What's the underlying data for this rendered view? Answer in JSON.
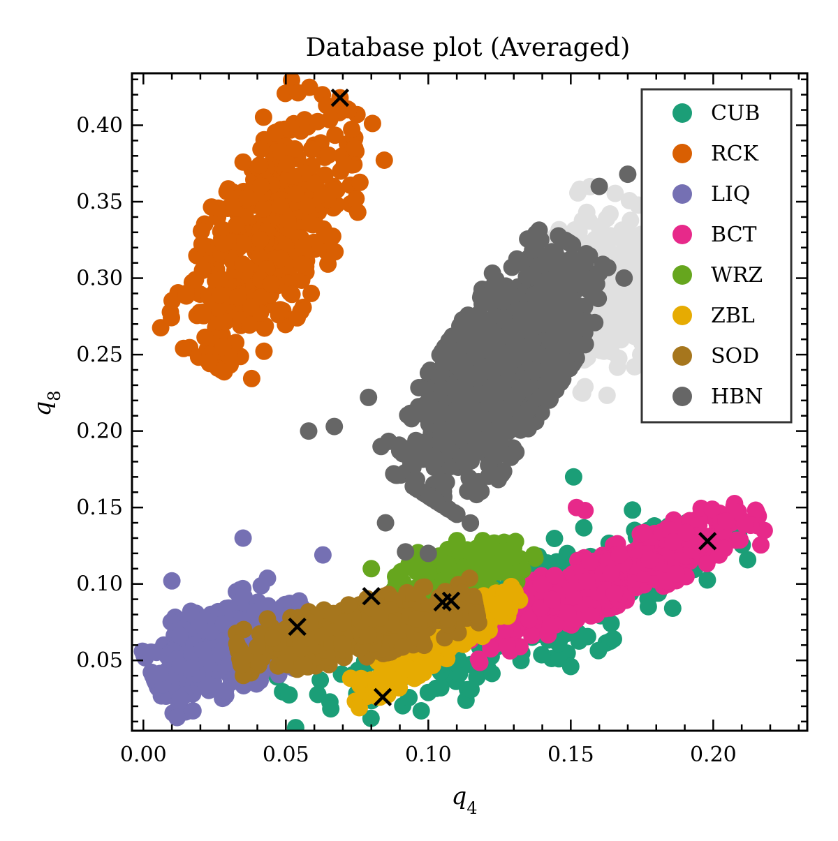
{
  "chart_data": {
    "type": "scatter",
    "title": "Database plot (Averaged)",
    "xlabel": "q4",
    "ylabel": "q8",
    "xlim": [
      -0.004,
      0.233
    ],
    "ylim": [
      0.004,
      0.434
    ],
    "x_ticks": [
      "0.00",
      "0.05",
      "0.10",
      "0.15",
      "0.20"
    ],
    "y_ticks": [
      "0.05",
      "0.10",
      "0.15",
      "0.20",
      "0.25",
      "0.30",
      "0.35",
      "0.40"
    ],
    "legend_position": "upper right",
    "grid": false,
    "series": [
      {
        "name": "CUB",
        "color": "#1b9e77",
        "clusters": [
          {
            "center": [
              0.13,
              0.075
            ],
            "width": 0.1,
            "height": 0.05,
            "tilt": 0.35,
            "n": 260
          }
        ],
        "points": [
          [
            0.151,
            0.17
          ],
          [
            0.15,
            0.046
          ],
          [
            0.165,
            0.064
          ],
          [
            0.1,
            0.029
          ],
          [
            0.115,
            0.031
          ]
        ]
      },
      {
        "name": "RCK",
        "color": "#d95f02",
        "clusters": [
          {
            "center": [
              0.045,
              0.33
            ],
            "width": 0.06,
            "height": 0.05,
            "tilt": 1.05,
            "n": 420
          }
        ],
        "points": [
          [
            0.069,
            0.418
          ],
          [
            0.023,
            0.245
          ],
          [
            0.015,
            0.29
          ],
          [
            0.028,
            0.255
          ]
        ]
      },
      {
        "name": "LIQ",
        "color": "#7570b3",
        "clusters": [
          {
            "center": [
              0.03,
              0.06
            ],
            "width": 0.034,
            "height": 0.036,
            "tilt": 0.4,
            "n": 520
          }
        ],
        "points": [
          [
            0.035,
            0.13
          ],
          [
            0.063,
            0.119
          ],
          [
            0.01,
            0.102
          ],
          [
            0.013,
            0.025
          ]
        ]
      },
      {
        "name": "BCT",
        "color": "#e7298a",
        "clusters": [
          {
            "center": [
              0.165,
              0.105
            ],
            "width": 0.065,
            "height": 0.022,
            "tilt": 0.4,
            "n": 520
          }
        ],
        "points": [
          [
            0.211,
            0.139
          ],
          [
            0.155,
            0.148
          ],
          [
            0.152,
            0.15
          ],
          [
            0.127,
            0.07
          ]
        ]
      },
      {
        "name": "WRZ",
        "color": "#66a61e",
        "clusters": [
          {
            "center": [
              0.112,
              0.11
            ],
            "width": 0.03,
            "height": 0.022,
            "tilt": 0.3,
            "n": 160
          }
        ],
        "points": [
          [
            0.08,
            0.11
          ]
        ]
      },
      {
        "name": "ZBL",
        "color": "#e6ab02",
        "clusters": [
          {
            "center": [
              0.102,
              0.06
            ],
            "width": 0.04,
            "height": 0.014,
            "tilt": 0.55,
            "n": 280
          }
        ],
        "points": [
          [
            0.083,
            0.026
          ],
          [
            0.125,
            0.082
          ]
        ]
      },
      {
        "name": "SOD",
        "color": "#a6761d",
        "clusters": [
          {
            "center": [
              0.075,
              0.07
            ],
            "width": 0.05,
            "height": 0.022,
            "tilt": 0.2,
            "n": 540
          }
        ],
        "points": [
          [
            0.04,
            0.059
          ],
          [
            0.106,
            0.095
          ]
        ]
      },
      {
        "name": "",
        "color": "#e0e0e0",
        "clusters": [
          {
            "center": [
              0.16,
              0.29
            ],
            "width": 0.04,
            "height": 0.05,
            "tilt": 1.1,
            "n": 320
          }
        ],
        "points": [
          [
            0.222,
            0.33
          ],
          [
            0.18,
            0.242
          ],
          [
            0.186,
            0.3
          ]
        ]
      },
      {
        "name": "HBN",
        "color": "#666666",
        "clusters": [
          {
            "center": [
              0.125,
              0.24
            ],
            "width": 0.06,
            "height": 0.045,
            "tilt": 1.0,
            "n": 1100
          }
        ],
        "points": [
          [
            0.067,
            0.203
          ],
          [
            0.079,
            0.222
          ],
          [
            0.092,
            0.121
          ],
          [
            0.1,
            0.12
          ],
          [
            0.085,
            0.14
          ],
          [
            0.17,
            0.368
          ],
          [
            0.16,
            0.36
          ],
          [
            0.058,
            0.2
          ]
        ]
      }
    ],
    "markers": {
      "symbol": "x",
      "color": "#000000",
      "points": [
        [
          0.069,
          0.418
        ],
        [
          0.054,
          0.072
        ],
        [
          0.08,
          0.092
        ],
        [
          0.084,
          0.026
        ],
        [
          0.105,
          0.088
        ],
        [
          0.108,
          0.089
        ],
        [
          0.198,
          0.128
        ],
        [
          0.222,
          0.33
        ]
      ]
    }
  }
}
